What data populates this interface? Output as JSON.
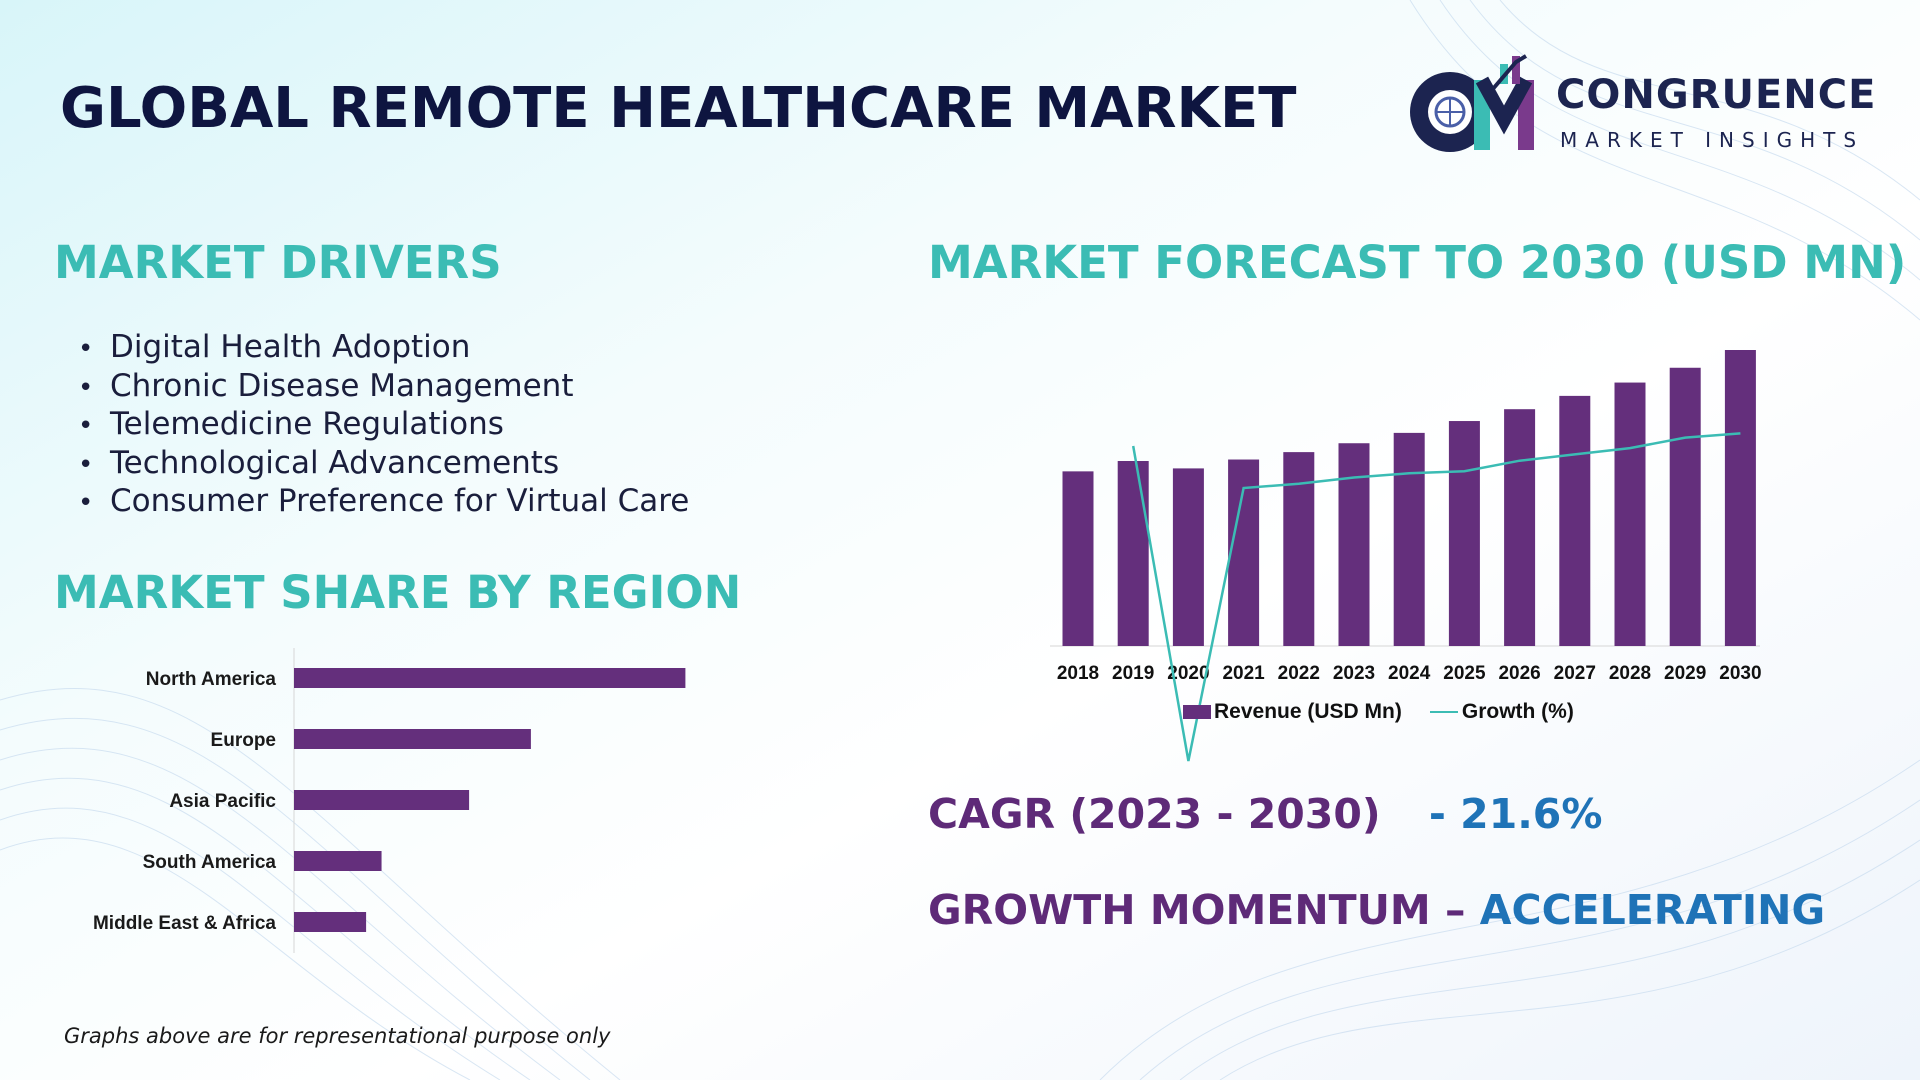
{
  "page": {
    "title": "GLOBAL REMOTE HEALTHCARE MARKET",
    "footnote": "Graphs above are for representational purpose only"
  },
  "logo": {
    "name": "CONGRUENCE",
    "subtitle": "MARKET INSIGHTS",
    "mark_letters": "CM"
  },
  "drivers": {
    "heading": "MARKET DRIVERS",
    "items": [
      "Digital Health Adoption",
      "Chronic Disease Management",
      "Telemedicine Regulations",
      "Technological Advancements",
      "Consumer Preference for Virtual Care"
    ]
  },
  "region": {
    "heading": "MARKET SHARE BY REGION"
  },
  "forecast": {
    "heading": "MARKET FORECAST TO 2030 (USD MN)"
  },
  "kpis": {
    "cagr_label": "CAGR (2023 - 2030)",
    "cagr_value": "- 21.6%",
    "momentum_label": "GROWTH MOMENTUM –",
    "momentum_value": "ACCELERATING"
  },
  "colors": {
    "heading_teal": "#3bbcb4",
    "bar_purple": "#642f7c",
    "line_teal": "#3bbcb4",
    "kpi_purple": "#5e2a78",
    "kpi_blue": "#1f73b7",
    "title_navy": "#0e1540"
  },
  "chart_data": [
    {
      "type": "bar",
      "orientation": "horizontal",
      "categories": [
        "North America",
        "Europe",
        "Asia Pacific",
        "South America",
        "Middle East & Africa"
      ],
      "values": [
        38,
        23,
        17,
        8.5,
        7
      ],
      "xlim": [
        0,
        40
      ],
      "grid": false,
      "legend": "none"
    },
    {
      "type": "bar",
      "categories": [
        "2018",
        "2019",
        "2020",
        "2021",
        "2022",
        "2023",
        "2024",
        "2025",
        "2026",
        "2027",
        "2028",
        "2029",
        "2030"
      ],
      "series": [
        {
          "name": "Revenue (USD Mn)",
          "type": "bar",
          "values": [
            59,
            62.5,
            60,
            63,
            65.5,
            68.5,
            72,
            76,
            80,
            84.5,
            89,
            94,
            100
          ]
        },
        {
          "name": "Growth (%)",
          "type": "line",
          "values": [
            null,
            90,
            15,
            80,
            81,
            82.5,
            83.5,
            84,
            86.5,
            88,
            89.5,
            92,
            93
          ]
        }
      ],
      "ylim_left": [
        0,
        110
      ],
      "ylim_right": [
        0,
        110
      ],
      "grid": false,
      "legend": "bottom"
    }
  ]
}
